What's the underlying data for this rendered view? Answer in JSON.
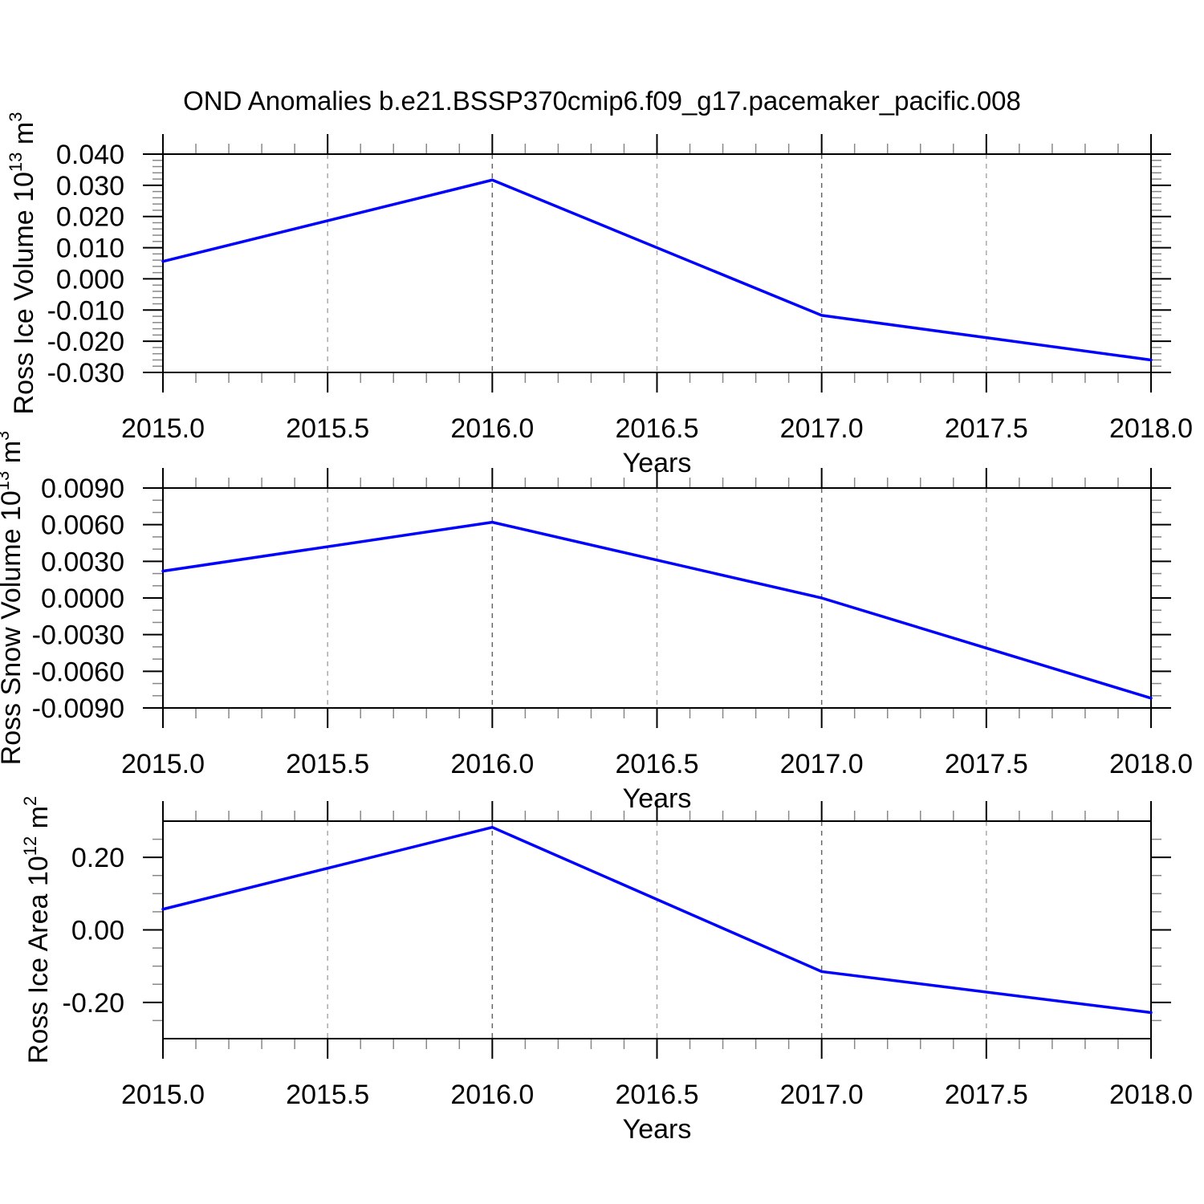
{
  "title": "OND Anomalies b.e21.BSSP370cmip6.f09_g17.pacemaker_pacific.008",
  "colors": {
    "background": "#ffffff",
    "line": "#0000ff",
    "frame": "#000000",
    "major_tick": "#000000",
    "minor_tick": "#888888",
    "grid_dark": "#666666",
    "grid_light": "#aaaaaa",
    "text": "#000000"
  },
  "xaxis": {
    "label": "Years",
    "lim": [
      2015.0,
      2018.0
    ],
    "ticks": [
      2015.0,
      2015.5,
      2016.0,
      2016.5,
      2017.0,
      2017.5,
      2018.0
    ],
    "tick_labels": [
      "2015.0",
      "2015.5",
      "2016.0",
      "2016.5",
      "2017.0",
      "2017.5",
      "2018.0"
    ],
    "minor_step": 0.1,
    "grid": [
      {
        "x": 2015.5,
        "shade": "light"
      },
      {
        "x": 2016.0,
        "shade": "dark"
      },
      {
        "x": 2016.5,
        "shade": "light"
      },
      {
        "x": 2017.0,
        "shade": "dark"
      },
      {
        "x": 2017.5,
        "shade": "light"
      }
    ]
  },
  "chart_data": [
    {
      "type": "line",
      "name": "ross-ice-volume",
      "ylabel": "Ross Ice Volume 10^13 m^3",
      "ylabel_parts": [
        {
          "text": "Ross Ice Volume 10",
          "sup": false
        },
        {
          "text": "13",
          "sup": true
        },
        {
          "text": " m",
          "sup": false
        },
        {
          "text": "3",
          "sup": true
        }
      ],
      "xlabel": "Years",
      "x": [
        2015.0,
        2016.0,
        2017.0,
        2018.0
      ],
      "values": [
        0.0056,
        0.0317,
        -0.0117,
        -0.026
      ],
      "ylim": [
        -0.03,
        0.04
      ],
      "yticks": [
        0.04,
        0.03,
        0.02,
        0.01,
        0.0,
        -0.01,
        -0.02,
        -0.03
      ],
      "ytick_labels": [
        "0.040",
        "0.030",
        "0.020",
        "0.010",
        "0.000",
        "-0.010",
        "-0.020",
        "-0.030"
      ],
      "yminor_step": 0.002,
      "grid": "vertical-dashed",
      "legend": "none"
    },
    {
      "type": "line",
      "name": "ross-snow-volume",
      "ylabel": "Ross Snow Volume 10^13 m^3",
      "ylabel_parts": [
        {
          "text": "Ross Snow Volume 10",
          "sup": false
        },
        {
          "text": "13",
          "sup": true
        },
        {
          "text": " m",
          "sup": false
        },
        {
          "text": "3",
          "sup": true
        }
      ],
      "xlabel": "Years",
      "x": [
        2015.0,
        2016.0,
        2017.0,
        2018.0
      ],
      "values": [
        0.0022,
        0.0062,
        0.0,
        -0.0082
      ],
      "ylim": [
        -0.009,
        0.009
      ],
      "yticks": [
        0.009,
        0.006,
        0.003,
        0.0,
        -0.003,
        -0.006,
        -0.009
      ],
      "ytick_labels": [
        "0.0090",
        "0.0060",
        "0.0030",
        "0.0000",
        "-0.0030",
        "-0.0060",
        "-0.0090"
      ],
      "yminor_step": 0.001,
      "grid": "vertical-dashed",
      "legend": "none"
    },
    {
      "type": "line",
      "name": "ross-ice-area",
      "ylabel": "Ross Ice Area 10^12 m^2",
      "ylabel_parts": [
        {
          "text": "Ross Ice Area 10",
          "sup": false
        },
        {
          "text": "12",
          "sup": true
        },
        {
          "text": " m",
          "sup": false
        },
        {
          "text": "2",
          "sup": true
        }
      ],
      "xlabel": "Years",
      "x": [
        2015.0,
        2016.0,
        2017.0,
        2018.0
      ],
      "values": [
        0.057,
        0.283,
        -0.115,
        -0.228
      ],
      "ylim": [
        -0.3,
        0.3
      ],
      "yticks": [
        0.2,
        0.0,
        -0.2
      ],
      "ytick_labels": [
        "0.20",
        "0.00",
        "-0.20"
      ],
      "yminor_step": 0.05,
      "grid": "vertical-dashed",
      "legend": "none"
    }
  ]
}
